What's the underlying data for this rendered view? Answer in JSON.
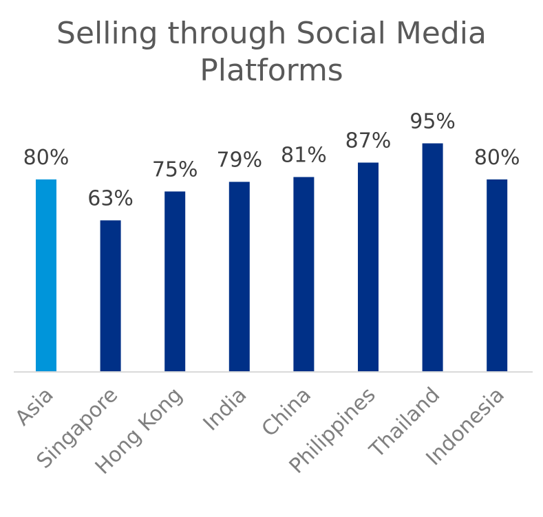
{
  "chart_data": {
    "type": "bar",
    "title_line1": "Selling through Social Media",
    "title_line2": "Platforms",
    "categories": [
      "Asia",
      "Singapore",
      "Hong Kong",
      "India",
      "China",
      "Philippines",
      "Thailand",
      "Indonesia"
    ],
    "values": [
      80,
      63,
      75,
      79,
      81,
      87,
      95,
      80
    ],
    "value_labels": [
      "80%",
      "63%",
      "75%",
      "79%",
      "81%",
      "87%",
      "95%",
      "80%"
    ],
    "ylim": [
      0,
      100
    ],
    "grid": false,
    "legend": "none",
    "colors": {
      "highlight": "#0095da",
      "bar": "#003087",
      "axis": "#d9d9d9"
    },
    "highlight_index": 0
  }
}
